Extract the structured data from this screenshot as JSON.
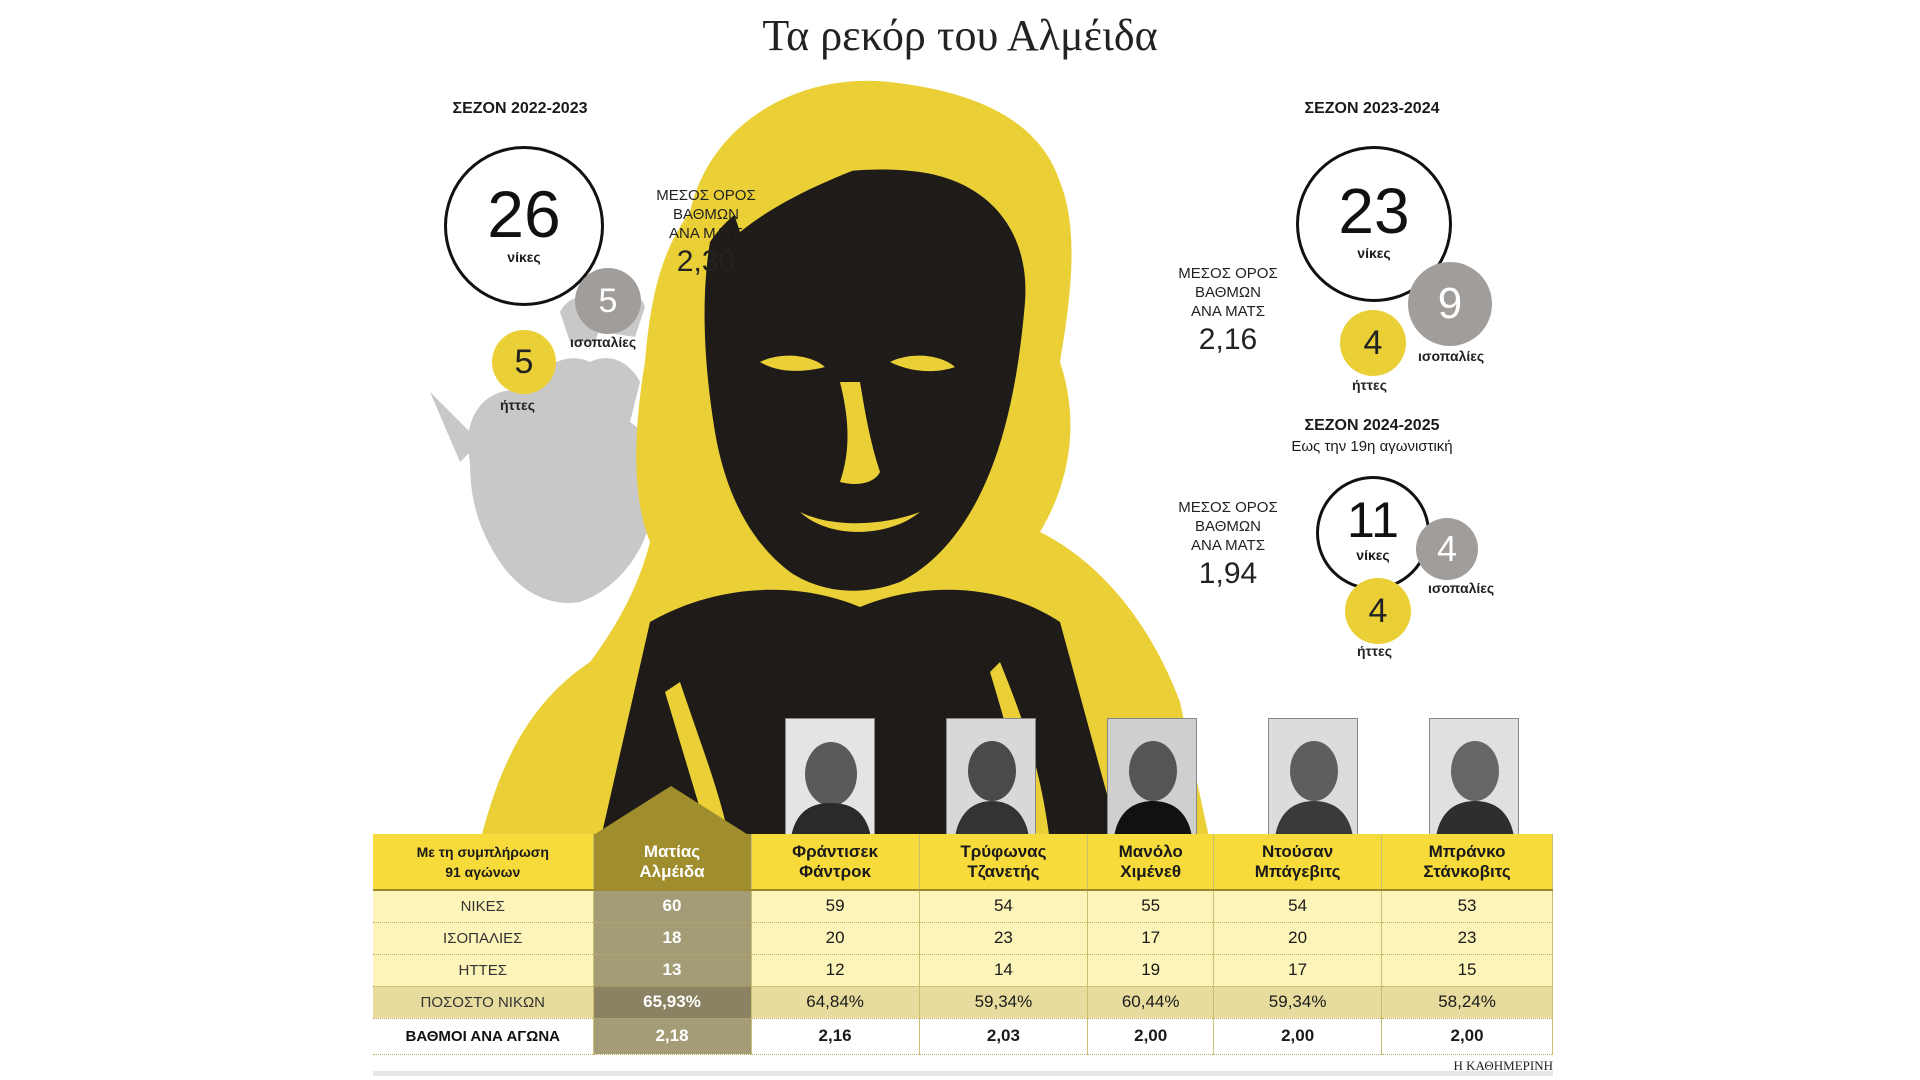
{
  "title": "Τα ρεκόρ του Αλμέιδα",
  "avg_label": [
    "ΜΕΣΟΣ ΟΡΟΣ",
    "ΒΑΘΜΩΝ",
    "ΑΝΑ ΜΑΤΣ"
  ],
  "labels": {
    "wins": "νίκες",
    "draws": "ισοπαλίες",
    "losses": "ήττες"
  },
  "seasons": [
    {
      "title": "ΣΕΖΟΝ 2022-2023",
      "subtitle": "",
      "wins": "26",
      "draws": "5",
      "losses": "5",
      "avg": "2,30"
    },
    {
      "title": "ΣΕΖΟΝ 2023-2024",
      "subtitle": "",
      "wins": "23",
      "draws": "9",
      "losses": "4",
      "avg": "2,16"
    },
    {
      "title": "ΣΕΖΟΝ 2024-2025",
      "subtitle": "Εως την 19η αγωνιστική",
      "wins": "11",
      "draws": "4",
      "losses": "4",
      "avg": "1,94"
    }
  ],
  "table": {
    "corner": [
      "Με τη συμπλήρωση",
      "91 αγώνων"
    ],
    "coaches": [
      {
        "first": "Ματίας",
        "last": "Αλμέιδα"
      },
      {
        "first": "Φράντισεκ",
        "last": "Φάντροκ"
      },
      {
        "first": "Τρύφωνας",
        "last": "Τζανετής"
      },
      {
        "first": "Μανόλο",
        "last": "Χιμένεθ"
      },
      {
        "first": "Ντούσαν",
        "last": "Μπάγεβιτς"
      },
      {
        "first": "Μπράνκο",
        "last": "Στάνκοβιτς"
      }
    ],
    "rows": [
      {
        "label": "ΝΙΚΕΣ",
        "values": [
          "60",
          "59",
          "54",
          "55",
          "54",
          "53"
        ]
      },
      {
        "label": "ΙΣΟΠΑΛΙΕΣ",
        "values": [
          "18",
          "20",
          "23",
          "17",
          "20",
          "23"
        ]
      },
      {
        "label": "ΗΤΤΕΣ",
        "values": [
          "13",
          "12",
          "14",
          "19",
          "17",
          "15"
        ]
      },
      {
        "label": "ΠΟΣΟΣΤΟ ΝΙΚΩΝ",
        "values": [
          "65,93%",
          "64,84%",
          "59,34%",
          "60,44%",
          "59,34%",
          "58,24%"
        ]
      },
      {
        "label": "ΒΑΘΜΟΙ ΑΝΑ ΑΓΩΝΑ",
        "values": [
          "2,18",
          "2,16",
          "2,03",
          "2,00",
          "2,00",
          "2,00"
        ]
      }
    ]
  },
  "source": "Η ΚΑΘΗΜΕΡΙΝΗ",
  "chart_data": {
    "type": "table",
    "title": "Τα ρεκόρ του Αλμέιδα",
    "columns": [
      "Ματίας Αλμέιδα",
      "Φράντισεκ Φάντροκ",
      "Τρύφωνας Τζανετής",
      "Μανόλο Χιμένεθ",
      "Ντούσαν Μπάγεβιτς",
      "Μπράνκο Στάνκοβιτς"
    ],
    "rows": [
      "ΝΙΚΕΣ",
      "ΙΣΟΠΑΛΙΕΣ",
      "ΗΤΤΕΣ",
      "ΠΟΣΟΣΤΟ ΝΙΚΩΝ",
      "ΒΑΘΜΟΙ ΑΝΑ ΑΓΩΝΑ"
    ],
    "values": [
      [
        60,
        59,
        54,
        55,
        54,
        53
      ],
      [
        18,
        20,
        23,
        17,
        20,
        23
      ],
      [
        13,
        12,
        14,
        19,
        17,
        15
      ],
      [
        65.93,
        64.84,
        59.34,
        60.44,
        59.34,
        58.24
      ],
      [
        2.18,
        2.16,
        2.03,
        2.0,
        2.0,
        2.0
      ]
    ],
    "seasons": [
      {
        "season": "ΣΕΖΟΝ 2022-2023",
        "wins": 26,
        "draws": 5,
        "losses": 5,
        "avg_points": 2.3
      },
      {
        "season": "ΣΕΖΟΝ 2023-2024",
        "wins": 23,
        "draws": 9,
        "losses": 4,
        "avg_points": 2.16
      },
      {
        "season": "ΣΕΖΟΝ 2024-2025",
        "wins": 11,
        "draws": 4,
        "losses": 4,
        "avg_points": 1.94
      }
    ]
  }
}
